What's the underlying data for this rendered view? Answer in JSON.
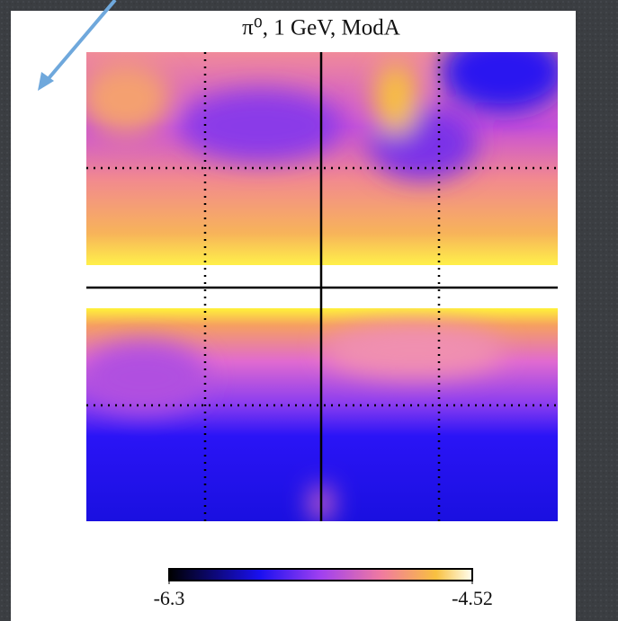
{
  "chart_data": {
    "type": "heatmap",
    "title": "π⁰, 1 GeV, ModA",
    "clim": [
      -6.3,
      -4.52
    ],
    "cticks": [
      -6.3,
      -4.52
    ]
  }
}
